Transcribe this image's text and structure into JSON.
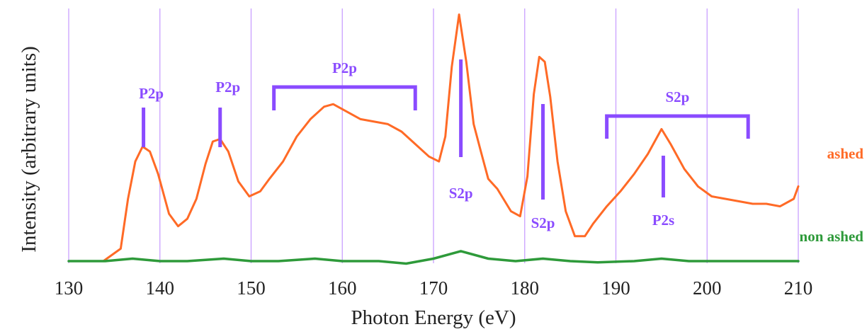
{
  "chart_data": {
    "type": "line",
    "title": "",
    "xlabel": "Photon Energy (eV)",
    "ylabel": "Intensity (arbitrary units)",
    "xlim": [
      130,
      210
    ],
    "ylim": [
      0,
      1
    ],
    "x_ticks": [
      130,
      140,
      150,
      160,
      170,
      180,
      190,
      200,
      210
    ],
    "y_ticks": [],
    "grid": {
      "x": true,
      "y": false
    },
    "colors": {
      "grid": "#c9a0ff",
      "annotation": "#8a4bff",
      "ashed": "#ff6a26",
      "non_ashed": "#2e9a3a",
      "axis_text": "#222222"
    },
    "series": [
      {
        "name": "ashed",
        "color": "#ff6a26",
        "x": [
          133.8,
          135.7,
          136.5,
          137.3,
          138.1,
          138.9,
          139.8,
          141.0,
          142.0,
          143.0,
          144.0,
          145.0,
          145.8,
          146.6,
          147.5,
          148.6,
          149.8,
          151.0,
          152.0,
          153.5,
          155.0,
          156.5,
          158.0,
          159.0,
          160.5,
          162.0,
          163.5,
          165.0,
          166.5,
          168.0,
          169.5,
          170.6,
          171.3,
          172.0,
          172.8,
          173.6,
          174.4,
          175.2,
          176.0,
          177.0,
          178.5,
          179.5,
          180.3,
          181.0,
          181.6,
          182.2,
          182.8,
          183.6,
          184.5,
          185.5,
          186.6,
          187.5,
          189.0,
          190.5,
          192.0,
          193.5,
          195.0,
          196.0,
          197.5,
          199.0,
          200.5,
          202.0,
          203.5,
          205.0,
          206.5,
          208.0,
          209.5,
          210.0
        ],
        "y": [
          0.0,
          0.05,
          0.25,
          0.4,
          0.46,
          0.44,
          0.35,
          0.19,
          0.14,
          0.17,
          0.25,
          0.39,
          0.48,
          0.49,
          0.44,
          0.32,
          0.26,
          0.28,
          0.33,
          0.4,
          0.5,
          0.57,
          0.62,
          0.63,
          0.6,
          0.57,
          0.56,
          0.55,
          0.52,
          0.47,
          0.42,
          0.4,
          0.5,
          0.78,
          0.99,
          0.8,
          0.55,
          0.44,
          0.33,
          0.29,
          0.2,
          0.18,
          0.34,
          0.67,
          0.82,
          0.8,
          0.66,
          0.4,
          0.2,
          0.1,
          0.1,
          0.15,
          0.22,
          0.28,
          0.35,
          0.43,
          0.53,
          0.47,
          0.37,
          0.3,
          0.26,
          0.25,
          0.24,
          0.23,
          0.23,
          0.22,
          0.25,
          0.3
        ]
      },
      {
        "name": "non ashed",
        "color": "#2e9a3a",
        "x": [
          130,
          134,
          137,
          140,
          143,
          147,
          150,
          153,
          157,
          160,
          164,
          167,
          170,
          173,
          176,
          179,
          182,
          185,
          188,
          192,
          195,
          198,
          202,
          206,
          210
        ],
        "y": [
          0.0,
          0.0,
          0.01,
          0.0,
          0.0,
          0.01,
          0.0,
          0.0,
          0.01,
          0.0,
          0.0,
          -0.01,
          0.01,
          0.04,
          0.01,
          0.0,
          0.01,
          0.0,
          -0.005,
          0.0,
          0.01,
          0.0,
          0.0,
          0.0,
          0.0
        ]
      }
    ],
    "annotations": [
      {
        "text": "P2p",
        "x": 138.2,
        "kind": "tick"
      },
      {
        "text": "P2p",
        "x": 146.6,
        "kind": "tick"
      },
      {
        "text": "P2p",
        "x_range": [
          152.5,
          168
        ],
        "kind": "bracket"
      },
      {
        "text": "S2p",
        "x": 173.0,
        "kind": "tick-below"
      },
      {
        "text": "S2p",
        "x": 182.0,
        "kind": "tick-below"
      },
      {
        "text": "S2p",
        "x_range": [
          189,
          204.5
        ],
        "kind": "bracket"
      },
      {
        "text": "P2s",
        "x": 195.2,
        "kind": "tick-below"
      }
    ]
  }
}
